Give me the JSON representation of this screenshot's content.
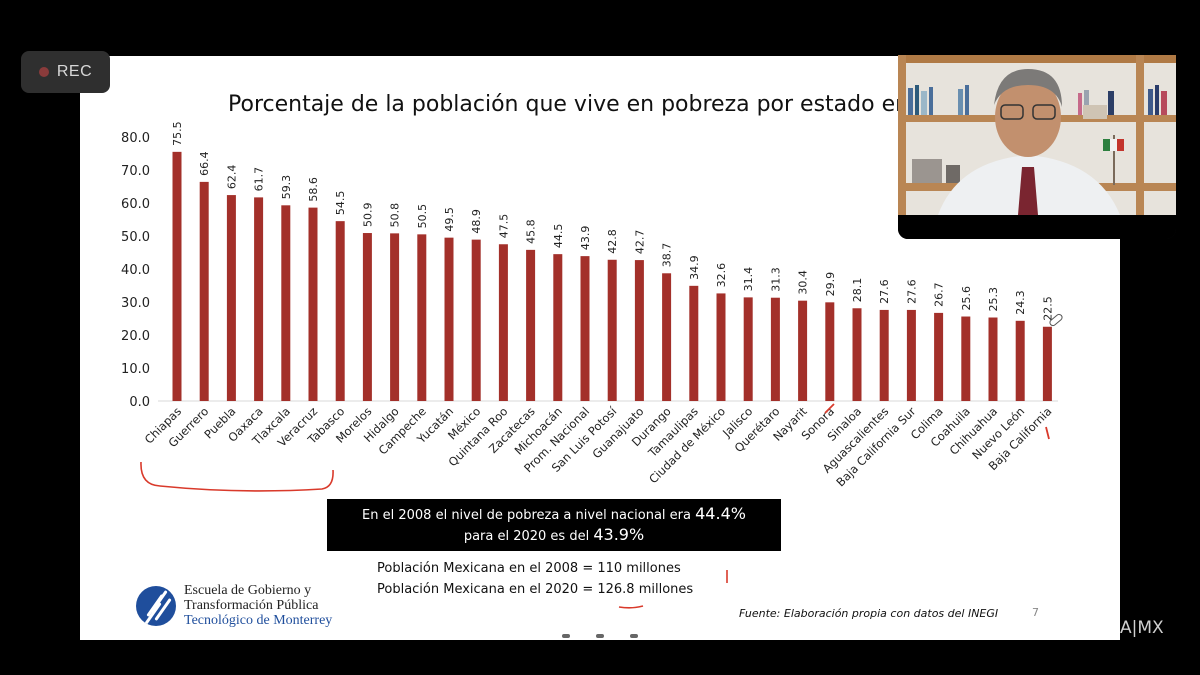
{
  "recording": {
    "label": "REC"
  },
  "slide": {
    "title": "Porcentaje de la población que vive en pobreza por estado en el 2020",
    "callout": {
      "line1_text": "En el 2008 el nivel de pobreza a nivel nacional era ",
      "line1_value": "44.4%",
      "line2_text": "para el 2020 es del ",
      "line2_value": "43.9%"
    },
    "population": {
      "line1": "Población Mexicana en el 2008 = 110 millones",
      "line2": "Población Mexicana en el 2020 = 126.8 millones"
    },
    "logo": {
      "line1": "Escuela de Gobierno y",
      "line2": "Transformación Pública",
      "line3": "Tecnológico de Monterrey"
    },
    "source": "Fuente: Elaboración propia con datos del INEGI",
    "page_number": "7"
  },
  "watermark": "A|MX",
  "video_participant": {
    "description": "Presenter video feed"
  },
  "chart_data": {
    "type": "bar",
    "title": "Porcentaje de la población que vive en pobreza por estado en el 2020",
    "xlabel": "",
    "ylabel": "",
    "ylim": [
      0,
      80
    ],
    "yticks": [
      "0.0",
      "10.0",
      "20.0",
      "30.0",
      "40.0",
      "50.0",
      "60.0",
      "70.0",
      "80.0"
    ],
    "grid": false,
    "bar_color": "#a3302a",
    "categories": [
      "Chiapas",
      "Guerrero",
      "Puebla",
      "Oaxaca",
      "Tlaxcala",
      "Veracruz",
      "Tabasco",
      "Morelos",
      "Hidalgo",
      "Campeche",
      "Yucatán",
      "México",
      "Quintana Roo",
      "Zacatecas",
      "Michoacán",
      "Prom. Nacional",
      "San Luis Potosí",
      "Guanajuato",
      "Durango",
      "Tamaulipas",
      "Ciudad de México",
      "Jalisco",
      "Querétaro",
      "Nayarit",
      "Sonora",
      "Sinaloa",
      "Aguascalientes",
      "Baja California Sur",
      "Colima",
      "Coahuila",
      "Chihuahua",
      "Nuevo León",
      "Baja California"
    ],
    "values": [
      75.5,
      66.4,
      62.4,
      61.7,
      59.3,
      58.6,
      54.5,
      50.9,
      50.8,
      50.5,
      49.5,
      48.9,
      47.5,
      45.8,
      44.5,
      43.9,
      42.8,
      42.7,
      38.7,
      34.9,
      32.6,
      31.4,
      31.3,
      30.4,
      29.9,
      28.1,
      27.6,
      27.6,
      26.7,
      25.6,
      25.3,
      24.3,
      22.5
    ]
  }
}
